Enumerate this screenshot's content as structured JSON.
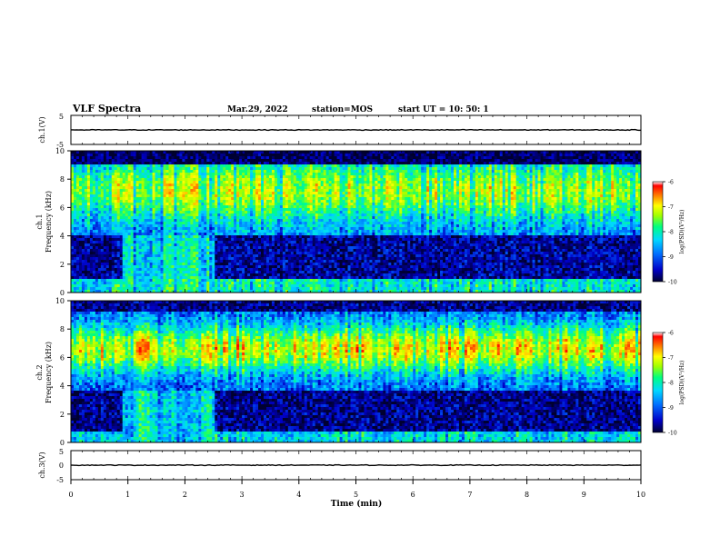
{
  "header": {
    "title": "VLF Spectra",
    "date": "Mar.29, 2022",
    "station": "station=MOS",
    "start": "start UT =  10: 50: 1"
  },
  "colors": {
    "colormap": [
      "#000030",
      "#0000c8",
      "#0070ff",
      "#00d8ff",
      "#00ff80",
      "#a0ff00",
      "#ffff00",
      "#ff8000",
      "#ff0000",
      "#ffffff"
    ],
    "line": "#000000"
  },
  "chart_data": [
    {
      "type": "line",
      "id": "ch1-waveform",
      "ylabel": "ch.1(V)",
      "ylim": [
        -5,
        5
      ],
      "yticks": [
        "5",
        "-5"
      ],
      "xlim": [
        0,
        10
      ],
      "series": [
        {
          "values_description_free": true,
          "x": [
            0,
            10
          ],
          "y": [
            0,
            0
          ]
        }
      ]
    },
    {
      "type": "heatmap",
      "id": "ch1-spectrogram",
      "ylabel": "ch.1\nFrequency (kHz)",
      "ylabel_line1": "ch.1",
      "ylabel_line2": "Frequency (kHz)",
      "ylim": [
        0,
        10
      ],
      "yticks": [
        "0",
        "2",
        "4",
        "6",
        "8",
        "10"
      ],
      "xlim": [
        0,
        10
      ],
      "colorbar": {
        "label": "log(PSD)(V²/Hz)",
        "range": [
          -10,
          -6
        ],
        "ticks": [
          "-6",
          "-7",
          "-8",
          "-9",
          "-10"
        ]
      }
    },
    {
      "type": "heatmap",
      "id": "ch2-spectrogram",
      "ylabel_line1": "ch.2",
      "ylabel_line2": "Frequency (kHz)",
      "ylim": [
        0,
        10
      ],
      "yticks": [
        "0",
        "2",
        "4",
        "6",
        "8",
        "10"
      ],
      "xlim": [
        0,
        10
      ],
      "colorbar": {
        "label": "log(PSD)(V²/Hz)",
        "range": [
          -10,
          -6
        ],
        "ticks": [
          "-6",
          "-7",
          "-8",
          "-9",
          "-10"
        ]
      }
    },
    {
      "type": "line",
      "id": "ch3-waveform",
      "ylabel": "ch.3(V)",
      "ylim": [
        -5,
        5
      ],
      "yticks": [
        "5",
        "0",
        "-5"
      ],
      "xlim": [
        0,
        10
      ]
    }
  ],
  "xaxis": {
    "label": "Time (min)",
    "ticks": [
      "0",
      "1",
      "2",
      "3",
      "4",
      "5",
      "6",
      "7",
      "8",
      "9",
      "10"
    ],
    "range": [
      0,
      10
    ]
  }
}
